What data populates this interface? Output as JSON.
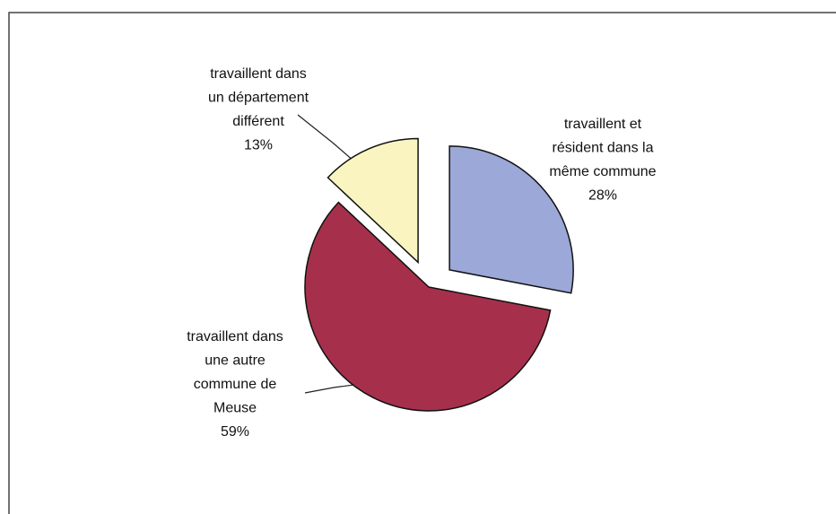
{
  "chart_data": {
    "type": "pie",
    "categories": [
      "travaillent et\nrésident dans la\nmême commune",
      "travaillent dans\nune autre\ncommune de\nMeuse",
      "travaillent dans\nun département\ndifférent"
    ],
    "values": [
      28,
      59,
      13
    ],
    "value_labels": [
      "28%",
      "59%",
      "13%"
    ],
    "colors": [
      "#9ca8d8",
      "#a6304c",
      "#faf5c0"
    ]
  }
}
